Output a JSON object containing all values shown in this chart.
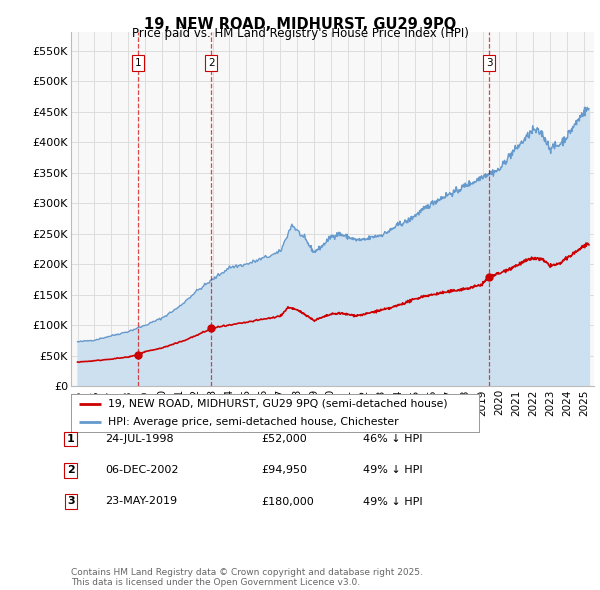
{
  "title": "19, NEW ROAD, MIDHURST, GU29 9PQ",
  "subtitle": "Price paid vs. HM Land Registry's House Price Index (HPI)",
  "ylabel_ticks": [
    "£0",
    "£50K",
    "£100K",
    "£150K",
    "£200K",
    "£250K",
    "£300K",
    "£350K",
    "£400K",
    "£450K",
    "£500K",
    "£550K"
  ],
  "ytick_values": [
    0,
    50000,
    100000,
    150000,
    200000,
    250000,
    300000,
    350000,
    400000,
    450000,
    500000,
    550000
  ],
  "ylim": [
    0,
    580000
  ],
  "xlim_start": 1994.6,
  "xlim_end": 2025.6,
  "background_color": "#ffffff",
  "plot_bg_color": "#f8f8f8",
  "grid_color": "#dddddd",
  "sale_points": [
    {
      "date": 1998.56,
      "price": 52000,
      "label": "1"
    },
    {
      "date": 2002.93,
      "price": 94950,
      "label": "2"
    },
    {
      "date": 2019.39,
      "price": 180000,
      "label": "3"
    }
  ],
  "vline_dates": [
    1998.56,
    2002.93,
    2019.39
  ],
  "vline_color": "#cc0000",
  "red_line_color": "#cc0000",
  "blue_line_color": "#6699cc",
  "blue_fill_color": "#cce0f0",
  "legend_entries": [
    "19, NEW ROAD, MIDHURST, GU29 9PQ (semi-detached house)",
    "HPI: Average price, semi-detached house, Chichester"
  ],
  "table_rows": [
    {
      "num": "1",
      "date": "24-JUL-1998",
      "price": "£52,000",
      "pct": "46% ↓ HPI"
    },
    {
      "num": "2",
      "date": "06-DEC-2002",
      "price": "£94,950",
      "pct": "49% ↓ HPI"
    },
    {
      "num": "3",
      "date": "23-MAY-2019",
      "price": "£180,000",
      "pct": "49% ↓ HPI"
    }
  ],
  "footer_text": "Contains HM Land Registry data © Crown copyright and database right 2025.\nThis data is licensed under the Open Government Licence v3.0.",
  "hpi_keypoints": [
    [
      1995.0,
      73000
    ],
    [
      1996.0,
      76000
    ],
    [
      1997.0,
      83000
    ],
    [
      1998.0,
      90000
    ],
    [
      1999.0,
      100000
    ],
    [
      2000.0,
      112000
    ],
    [
      2001.0,
      130000
    ],
    [
      2002.0,
      155000
    ],
    [
      2003.0,
      175000
    ],
    [
      2004.0,
      195000
    ],
    [
      2005.0,
      200000
    ],
    [
      2006.0,
      210000
    ],
    [
      2007.0,
      220000
    ],
    [
      2007.7,
      265000
    ],
    [
      2008.5,
      240000
    ],
    [
      2009.0,
      220000
    ],
    [
      2009.5,
      230000
    ],
    [
      2010.0,
      245000
    ],
    [
      2010.5,
      250000
    ],
    [
      2011.0,
      245000
    ],
    [
      2011.5,
      240000
    ],
    [
      2012.0,
      240000
    ],
    [
      2012.5,
      245000
    ],
    [
      2013.0,
      248000
    ],
    [
      2013.5,
      255000
    ],
    [
      2014.0,
      265000
    ],
    [
      2014.5,
      270000
    ],
    [
      2015.0,
      280000
    ],
    [
      2015.5,
      290000
    ],
    [
      2016.0,
      300000
    ],
    [
      2016.5,
      308000
    ],
    [
      2017.0,
      315000
    ],
    [
      2017.5,
      320000
    ],
    [
      2018.0,
      330000
    ],
    [
      2018.5,
      335000
    ],
    [
      2019.0,
      345000
    ],
    [
      2019.5,
      350000
    ],
    [
      2020.0,
      355000
    ],
    [
      2020.5,
      375000
    ],
    [
      2021.0,
      390000
    ],
    [
      2021.5,
      405000
    ],
    [
      2022.0,
      420000
    ],
    [
      2022.5,
      415000
    ],
    [
      2023.0,
      390000
    ],
    [
      2023.5,
      395000
    ],
    [
      2024.0,
      410000
    ],
    [
      2024.5,
      430000
    ],
    [
      2025.0,
      450000
    ],
    [
      2025.3,
      455000
    ]
  ],
  "red_keypoints": [
    [
      1995.0,
      40000
    ],
    [
      1996.0,
      42000
    ],
    [
      1997.0,
      45000
    ],
    [
      1998.0,
      48000
    ],
    [
      1998.56,
      52000
    ],
    [
      1999.0,
      57000
    ],
    [
      2000.0,
      63000
    ],
    [
      2001.0,
      72000
    ],
    [
      2002.0,
      83000
    ],
    [
      2002.93,
      94950
    ],
    [
      2003.0,
      96000
    ],
    [
      2004.0,
      100000
    ],
    [
      2005.0,
      105000
    ],
    [
      2006.0,
      110000
    ],
    [
      2007.0,
      115000
    ],
    [
      2007.5,
      130000
    ],
    [
      2008.0,
      125000
    ],
    [
      2008.5,
      118000
    ],
    [
      2009.0,
      108000
    ],
    [
      2009.5,
      113000
    ],
    [
      2010.0,
      118000
    ],
    [
      2010.5,
      120000
    ],
    [
      2011.0,
      118000
    ],
    [
      2011.5,
      116000
    ],
    [
      2012.0,
      118000
    ],
    [
      2012.5,
      122000
    ],
    [
      2013.0,
      125000
    ],
    [
      2013.5,
      128000
    ],
    [
      2014.0,
      133000
    ],
    [
      2014.5,
      138000
    ],
    [
      2015.0,
      143000
    ],
    [
      2015.5,
      148000
    ],
    [
      2016.0,
      150000
    ],
    [
      2016.5,
      153000
    ],
    [
      2017.0,
      155000
    ],
    [
      2017.5,
      158000
    ],
    [
      2018.0,
      160000
    ],
    [
      2018.5,
      163000
    ],
    [
      2019.0,
      168000
    ],
    [
      2019.39,
      180000
    ],
    [
      2019.5,
      182000
    ],
    [
      2020.0,
      185000
    ],
    [
      2020.5,
      192000
    ],
    [
      2021.0,
      198000
    ],
    [
      2021.5,
      205000
    ],
    [
      2022.0,
      210000
    ],
    [
      2022.5,
      208000
    ],
    [
      2023.0,
      198000
    ],
    [
      2023.5,
      200000
    ],
    [
      2024.0,
      210000
    ],
    [
      2024.5,
      220000
    ],
    [
      2025.0,
      230000
    ],
    [
      2025.3,
      232000
    ]
  ]
}
